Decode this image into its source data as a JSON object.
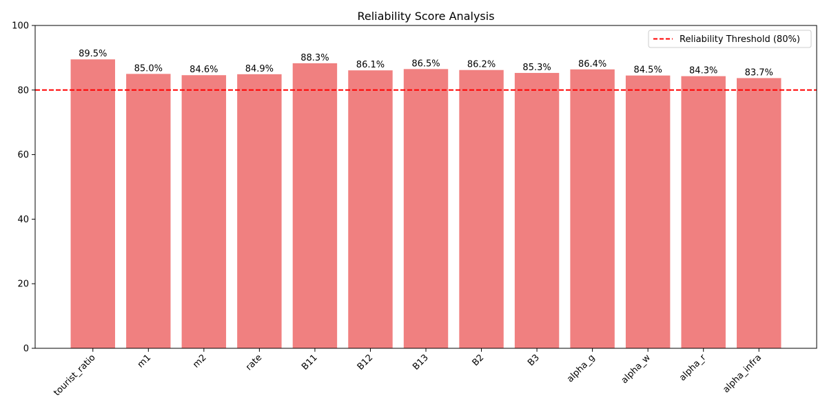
{
  "chart_data": {
    "type": "bar",
    "title": "Reliability Score Analysis",
    "xlabel": "",
    "ylabel": "",
    "categories": [
      "tourist_ratio",
      "m1",
      "m2",
      "rate",
      "B11",
      "B12",
      "B13",
      "B2",
      "B3",
      "alpha_g",
      "alpha_w",
      "alpha_r",
      "alpha_infra"
    ],
    "values": [
      89.5,
      85.0,
      84.6,
      84.9,
      88.3,
      86.1,
      86.5,
      86.2,
      85.3,
      86.4,
      84.5,
      84.3,
      83.7
    ],
    "value_labels": [
      "89.5%",
      "85.0%",
      "84.6%",
      "84.9%",
      "88.3%",
      "86.1%",
      "86.5%",
      "86.2%",
      "85.3%",
      "86.4%",
      "84.5%",
      "84.3%",
      "83.7%"
    ],
    "ylim": [
      0,
      100
    ],
    "yticks": [
      0,
      20,
      40,
      60,
      80,
      100
    ],
    "ytick_labels": [
      "0",
      "20",
      "40",
      "60",
      "80",
      "100"
    ],
    "threshold": {
      "value": 80,
      "label": "Reliability Threshold (80%)",
      "color": "#ff0000",
      "style": "dashed"
    },
    "bar_color": "#f08080",
    "grid": false,
    "legend_position": "top-right"
  }
}
